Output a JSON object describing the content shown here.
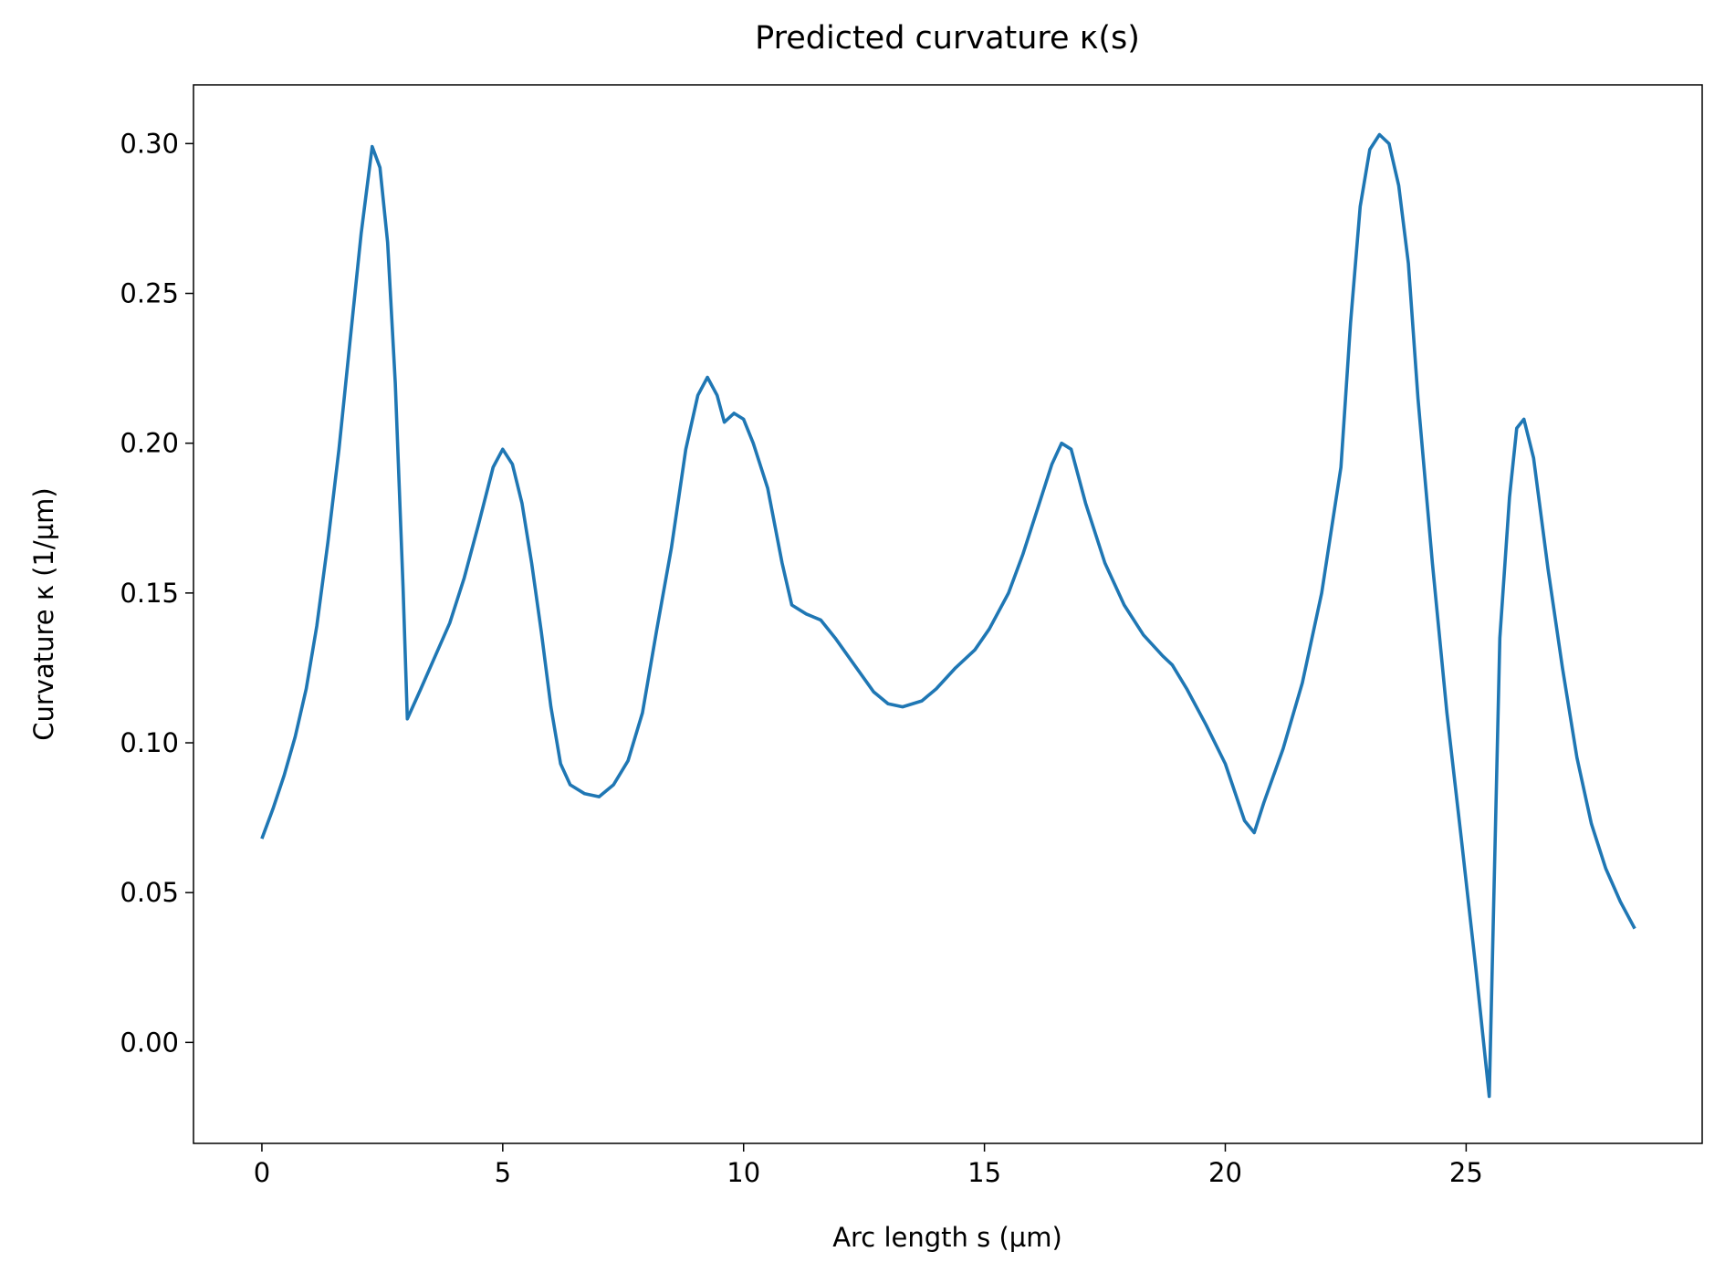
{
  "chart_data": {
    "type": "line",
    "title": "Predicted curvature κ(s)",
    "x_label": "Arc length s (µm)",
    "y_label": "Curvature κ (1/µm)",
    "color": "#1f77b4",
    "xlim": [
      -1.42,
      29.9
    ],
    "ylim": [
      -0.0337,
      0.3196
    ],
    "xticks": [
      0,
      5,
      10,
      15,
      20,
      25
    ],
    "yticks": [
      {
        "value": 0,
        "label": "0.00"
      },
      0.05,
      {
        "value": 0.1,
        "label": "0.10"
      },
      0.15,
      {
        "value": 0.2,
        "label": "0.20"
      },
      0.25,
      {
        "value": 0.3,
        "label": "0.30"
      }
    ],
    "x": [
      0,
      0.23,
      0.46,
      0.69,
      0.92,
      1.14,
      1.37,
      1.6,
      1.83,
      2.06,
      2.29,
      2.45,
      2.61,
      2.77,
      2.93,
      3.02,
      3.3,
      3.6,
      3.9,
      4.2,
      4.5,
      4.8,
      5.0,
      5.2,
      5.4,
      5.6,
      5.8,
      6.0,
      6.2,
      6.4,
      6.7,
      7.0,
      7.3,
      7.6,
      7.9,
      8.2,
      8.5,
      8.8,
      9.05,
      9.25,
      9.45,
      9.6,
      9.8,
      10.0,
      10.2,
      10.5,
      10.8,
      11.0,
      11.3,
      11.6,
      11.9,
      12.3,
      12.7,
      13.0,
      13.3,
      13.7,
      14.0,
      14.4,
      14.8,
      15.1,
      15.5,
      15.8,
      16.1,
      16.4,
      16.6,
      16.8,
      17.1,
      17.5,
      17.9,
      18.3,
      18.7,
      18.9,
      19.2,
      19.6,
      20.0,
      20.4,
      20.6,
      20.8,
      21.2,
      21.6,
      22.0,
      22.4,
      22.6,
      22.8,
      23.0,
      23.2,
      23.4,
      23.6,
      23.8,
      24.0,
      24.3,
      24.6,
      24.9,
      25.2,
      25.48,
      25.7,
      25.9,
      26.05,
      26.2,
      26.4,
      26.7,
      27.0,
      27.3,
      27.6,
      27.9,
      28.2,
      28.5
    ],
    "values": [
      0.068,
      0.078,
      0.089,
      0.102,
      0.118,
      0.139,
      0.167,
      0.198,
      0.234,
      0.27,
      0.299,
      0.292,
      0.267,
      0.22,
      0.152,
      0.108,
      0.118,
      0.129,
      0.14,
      0.155,
      0.173,
      0.192,
      0.198,
      0.193,
      0.18,
      0.16,
      0.137,
      0.112,
      0.093,
      0.086,
      0.083,
      0.082,
      0.086,
      0.094,
      0.11,
      0.138,
      0.165,
      0.198,
      0.216,
      0.222,
      0.216,
      0.207,
      0.21,
      0.208,
      0.2,
      0.185,
      0.16,
      0.146,
      0.143,
      0.141,
      0.135,
      0.126,
      0.117,
      0.113,
      0.112,
      0.114,
      0.118,
      0.125,
      0.131,
      0.138,
      0.15,
      0.163,
      0.178,
      0.193,
      0.2,
      0.198,
      0.18,
      0.16,
      0.146,
      0.136,
      0.129,
      0.126,
      0.118,
      0.106,
      0.093,
      0.074,
      0.07,
      0.08,
      0.098,
      0.12,
      0.15,
      0.192,
      0.24,
      0.279,
      0.298,
      0.303,
      0.3,
      0.286,
      0.26,
      0.215,
      0.16,
      0.11,
      0.068,
      0.025,
      -0.018,
      0.135,
      0.182,
      0.205,
      0.208,
      0.195,
      0.158,
      0.125,
      0.095,
      0.073,
      0.058,
      0.047,
      0.038
    ]
  }
}
